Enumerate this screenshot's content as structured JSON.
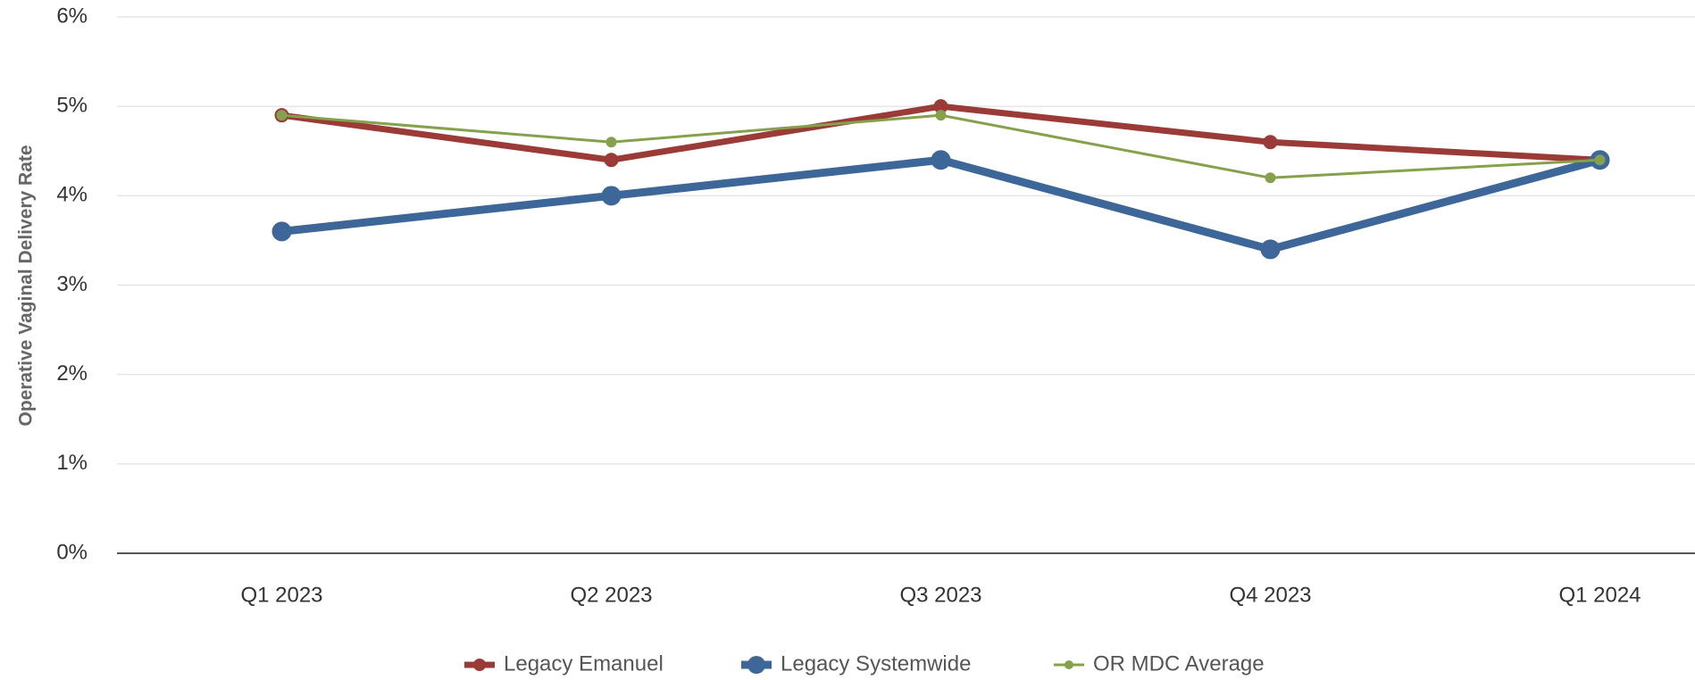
{
  "chart_data": {
    "type": "line",
    "y_axis_label": "Operative Vaginal Delivery Rate",
    "categories": [
      "Q1 2023",
      "Q2 2023",
      "Q3 2023",
      "Q4 2023",
      "Q1 2024"
    ],
    "series": [
      {
        "name": "Legacy Emanuel",
        "color": "#9b3b37",
        "values": [
          4.9,
          4.4,
          5.0,
          4.6,
          4.4
        ]
      },
      {
        "name": "Legacy Systemwide",
        "color": "#3e6799",
        "values": [
          3.6,
          4.0,
          4.4,
          3.4,
          4.4
        ]
      },
      {
        "name": "OR MDC Average",
        "color": "#86a14c",
        "values": [
          4.9,
          4.6,
          4.9,
          4.2,
          4.4
        ]
      }
    ],
    "ylim": [
      0,
      6
    ],
    "yticks": [
      {
        "value": 0,
        "label": "0%"
      },
      {
        "value": 1,
        "label": "1%"
      },
      {
        "value": 2,
        "label": "2%"
      },
      {
        "value": 3,
        "label": "3%"
      },
      {
        "value": 4,
        "label": "4%"
      },
      {
        "value": 5,
        "label": "5%"
      },
      {
        "value": 6,
        "label": "6%"
      }
    ],
    "grid": true,
    "legend": "bottom"
  }
}
